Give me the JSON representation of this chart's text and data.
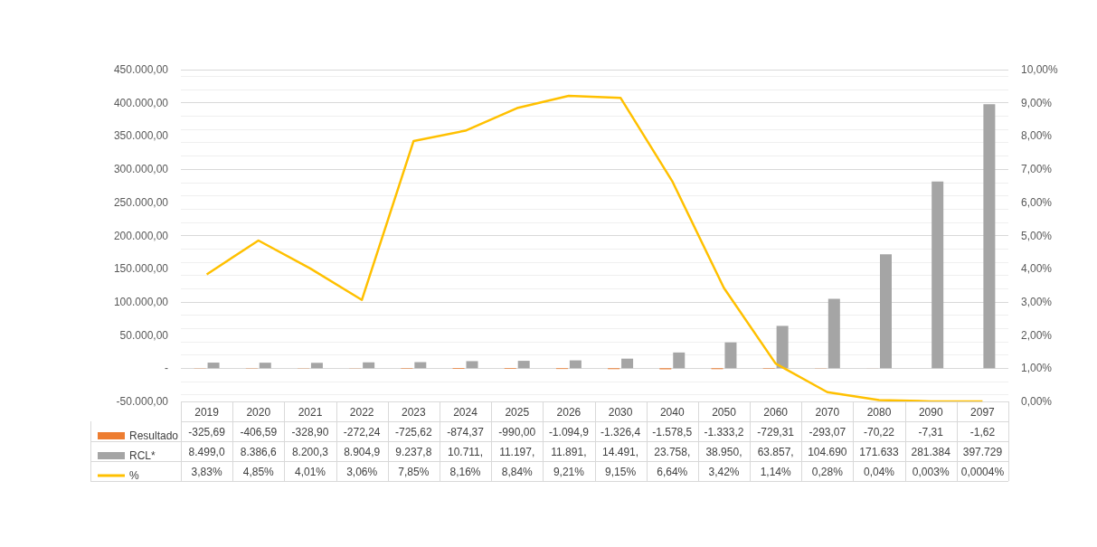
{
  "chart_data": {
    "type": "bar",
    "categories": [
      "2019",
      "2020",
      "2021",
      "2022",
      "2023",
      "2024",
      "2025",
      "2026",
      "2030",
      "2040",
      "2050",
      "2060",
      "2070",
      "2080",
      "2090",
      "2097"
    ],
    "series": [
      {
        "name": "Resultado",
        "color": "#ed7d31",
        "values": [
          -325.69,
          -406.59,
          -328.9,
          -272.24,
          -725.62,
          -874.37,
          -990.0,
          -1094.9,
          -1326.4,
          -1578.5,
          -1333.2,
          -729.31,
          -293.07,
          -70.22,
          -7.31,
          -1.62
        ],
        "value_labels": [
          "-325,69",
          "-406,59",
          "-328,90",
          "-272,24",
          "-725,62",
          "-874,37",
          "-990,00",
          "-1.094,9",
          "-1.326,4",
          "-1.578,5",
          "-1.333,2",
          "-729,31",
          "-293,07",
          "-70,22",
          "-7,31",
          "-1,62"
        ]
      },
      {
        "name": "RCL*",
        "color": "#a5a5a5",
        "values": [
          8499.0,
          8386.6,
          8200.3,
          8904.9,
          9237.8,
          10711,
          11197,
          11891,
          14491,
          23758,
          38950,
          63857,
          104690,
          171633,
          281384,
          397729
        ],
        "value_labels": [
          "8.499,0",
          "8.386,6",
          "8.200,3",
          "8.904,9",
          "9.237,8",
          "10.711,",
          "11.197,",
          "11.891,",
          "14.491,",
          "23.758,",
          "38.950,",
          "63.857,",
          "104.690",
          "171.633",
          "281.384",
          "397.729"
        ]
      },
      {
        "name": "%",
        "type": "line",
        "axis": "y2",
        "color": "#ffc000",
        "values": [
          3.83,
          4.85,
          4.01,
          3.06,
          7.85,
          8.16,
          8.84,
          9.21,
          9.15,
          6.64,
          3.42,
          1.14,
          0.28,
          0.04,
          0.003,
          0.0004
        ],
        "value_labels": [
          "3,83%",
          "4,85%",
          "4,01%",
          "3,06%",
          "7,85%",
          "8,16%",
          "8,84%",
          "9,21%",
          "9,15%",
          "6,64%",
          "3,42%",
          "1,14%",
          "0,28%",
          "0,04%",
          "0,003%",
          "0,0004%"
        ]
      }
    ],
    "ylim": [
      -50000,
      450000
    ],
    "yticks": [
      {
        "value": -50000,
        "label": "-50.000,00"
      },
      {
        "value": 0,
        "label": "-"
      },
      {
        "value": 50000,
        "label": "50.000,00"
      },
      {
        "value": 100000,
        "label": "100.000,00"
      },
      {
        "value": 150000,
        "label": "150.000,00"
      },
      {
        "value": 200000,
        "label": "200.000,00"
      },
      {
        "value": 250000,
        "label": "250.000,00"
      },
      {
        "value": 300000,
        "label": "300.000,00"
      },
      {
        "value": 350000,
        "label": "350.000,00"
      },
      {
        "value": 400000,
        "label": "400.000,00"
      },
      {
        "value": 450000,
        "label": "450.000,00"
      }
    ],
    "y2lim": [
      0,
      10
    ],
    "y2ticks": [
      {
        "value": 0,
        "label": "0,00%"
      },
      {
        "value": 1,
        "label": "1,00%"
      },
      {
        "value": 2,
        "label": "2,00%"
      },
      {
        "value": 3,
        "label": "3,00%"
      },
      {
        "value": 4,
        "label": "4,00%"
      },
      {
        "value": 5,
        "label": "5,00%"
      },
      {
        "value": 6,
        "label": "6,00%"
      },
      {
        "value": 7,
        "label": "7,00%"
      },
      {
        "value": 8,
        "label": "8,00%"
      },
      {
        "value": 9,
        "label": "9,00%"
      },
      {
        "value": 10,
        "label": "10,00%"
      }
    ],
    "grid": "y",
    "legend": "bottom left",
    "marker": "none"
  }
}
